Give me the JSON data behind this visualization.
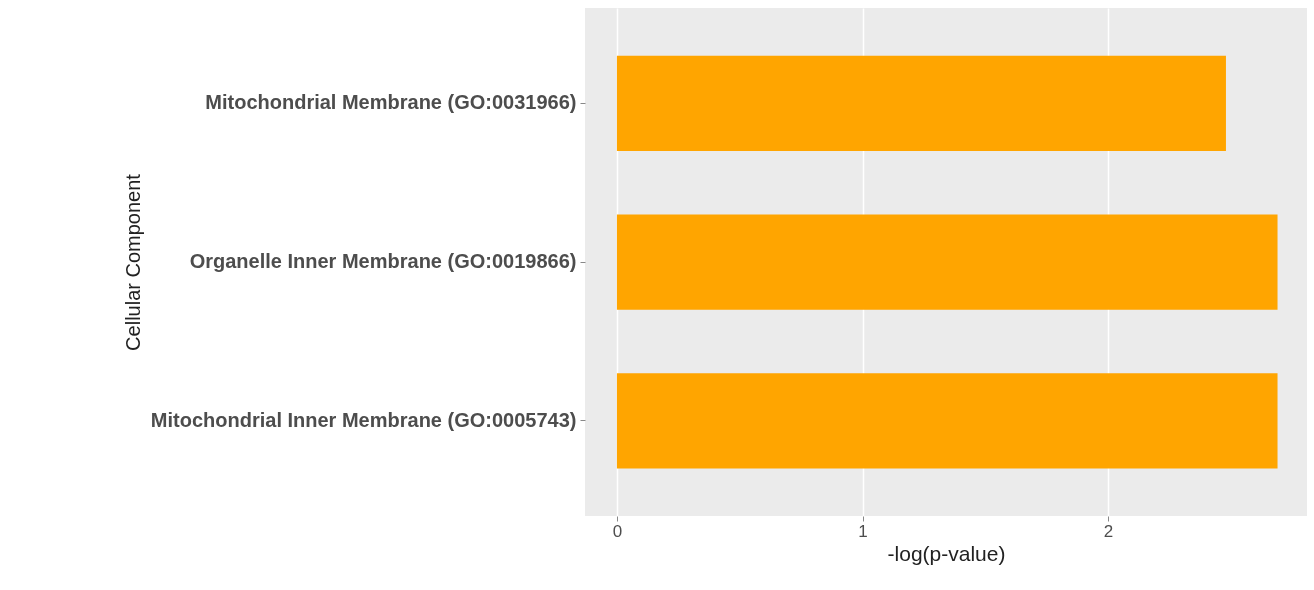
{
  "chart_data": {
    "type": "bar",
    "orientation": "horizontal",
    "xlabel": "-log(p-value)",
    "ylabel": "Cellular Component",
    "categories": [
      "Mitochondrial Membrane (GO:0031966)",
      "Organelle Inner Membrane (GO:0019866)",
      "Mitochondrial Inner Membrane (GO:0005743)"
    ],
    "values": [
      2.48,
      2.69,
      2.69
    ],
    "color": "#ffa500",
    "xlim": [
      -0.13,
      2.81
    ],
    "xticks": [
      0,
      1,
      2
    ],
    "grid": true
  }
}
